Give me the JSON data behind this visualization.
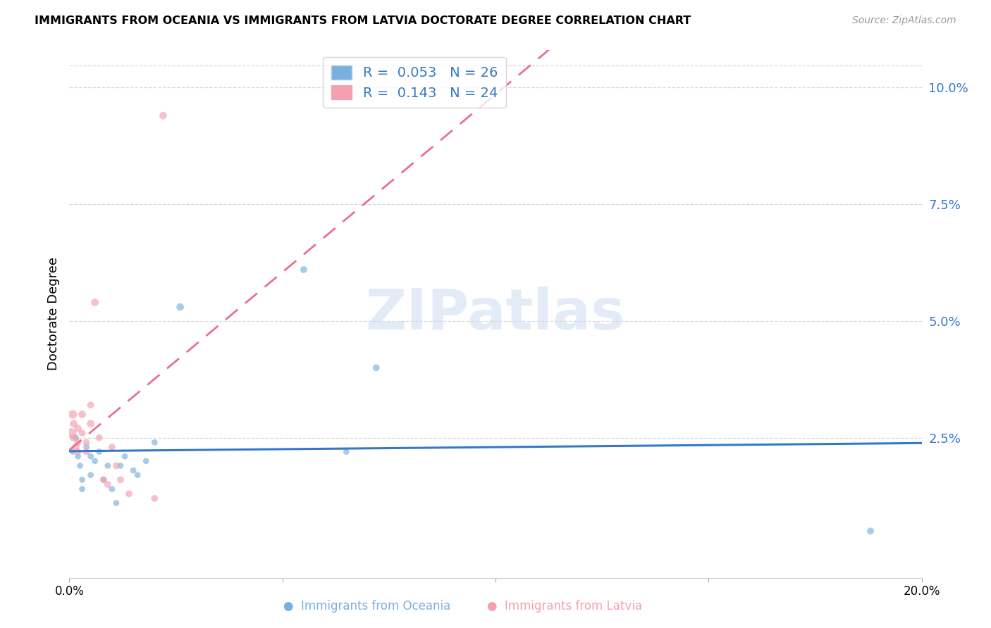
{
  "title": "IMMIGRANTS FROM OCEANIA VS IMMIGRANTS FROM LATVIA DOCTORATE DEGREE CORRELATION CHART",
  "source": "Source: ZipAtlas.com",
  "ylabel": "Doctorate Degree",
  "right_ytick_labels": [
    "10.0%",
    "7.5%",
    "5.0%",
    "2.5%"
  ],
  "right_ytick_values": [
    0.1,
    0.075,
    0.05,
    0.025
  ],
  "xlim": [
    0.0,
    0.2
  ],
  "ylim": [
    -0.005,
    0.108
  ],
  "watermark": "ZIPatlas",
  "legend_labels": [
    "R =  0.053   N = 26",
    "R =  0.143   N = 24"
  ],
  "oceania_x": [
    0.0008,
    0.0015,
    0.002,
    0.0025,
    0.003,
    0.003,
    0.004,
    0.005,
    0.005,
    0.006,
    0.007,
    0.008,
    0.009,
    0.01,
    0.011,
    0.012,
    0.013,
    0.015,
    0.016,
    0.018,
    0.02,
    0.026,
    0.055,
    0.065,
    0.072,
    0.188
  ],
  "oceania_y": [
    0.022,
    0.025,
    0.021,
    0.019,
    0.016,
    0.014,
    0.023,
    0.021,
    0.017,
    0.02,
    0.022,
    0.016,
    0.019,
    0.014,
    0.011,
    0.019,
    0.021,
    0.018,
    0.017,
    0.02,
    0.024,
    0.053,
    0.061,
    0.022,
    0.04,
    0.005
  ],
  "oceania_sizes": [
    40,
    40,
    40,
    40,
    40,
    40,
    40,
    40,
    40,
    40,
    40,
    40,
    40,
    40,
    40,
    40,
    40,
    40,
    40,
    40,
    40,
    60,
    50,
    40,
    50,
    50
  ],
  "latvia_x": [
    0.0005,
    0.0008,
    0.001,
    0.001,
    0.0015,
    0.002,
    0.002,
    0.002,
    0.003,
    0.003,
    0.004,
    0.004,
    0.005,
    0.005,
    0.006,
    0.007,
    0.008,
    0.009,
    0.01,
    0.011,
    0.012,
    0.014,
    0.02,
    0.022
  ],
  "latvia_y": [
    0.026,
    0.03,
    0.025,
    0.028,
    0.023,
    0.027,
    0.024,
    0.022,
    0.03,
    0.026,
    0.024,
    0.022,
    0.028,
    0.032,
    0.054,
    0.025,
    0.016,
    0.015,
    0.023,
    0.019,
    0.016,
    0.013,
    0.012,
    0.094
  ],
  "latvia_sizes": [
    100,
    80,
    60,
    60,
    60,
    60,
    50,
    50,
    60,
    50,
    50,
    50,
    60,
    50,
    60,
    50,
    50,
    50,
    50,
    50,
    50,
    50,
    50,
    60
  ],
  "oceania_color": "#7ab0e0",
  "latvia_color": "#f4a0b0",
  "oceania_trend_color": "#3478c8",
  "latvia_trend_color": "#e87090",
  "background_color": "#ffffff",
  "grid_color": "#d8d8d8",
  "xticks": [
    0.0,
    0.05,
    0.1,
    0.15,
    0.2
  ],
  "xtick_labels": [
    "0.0%",
    "",
    "",
    "",
    "20.0%"
  ]
}
